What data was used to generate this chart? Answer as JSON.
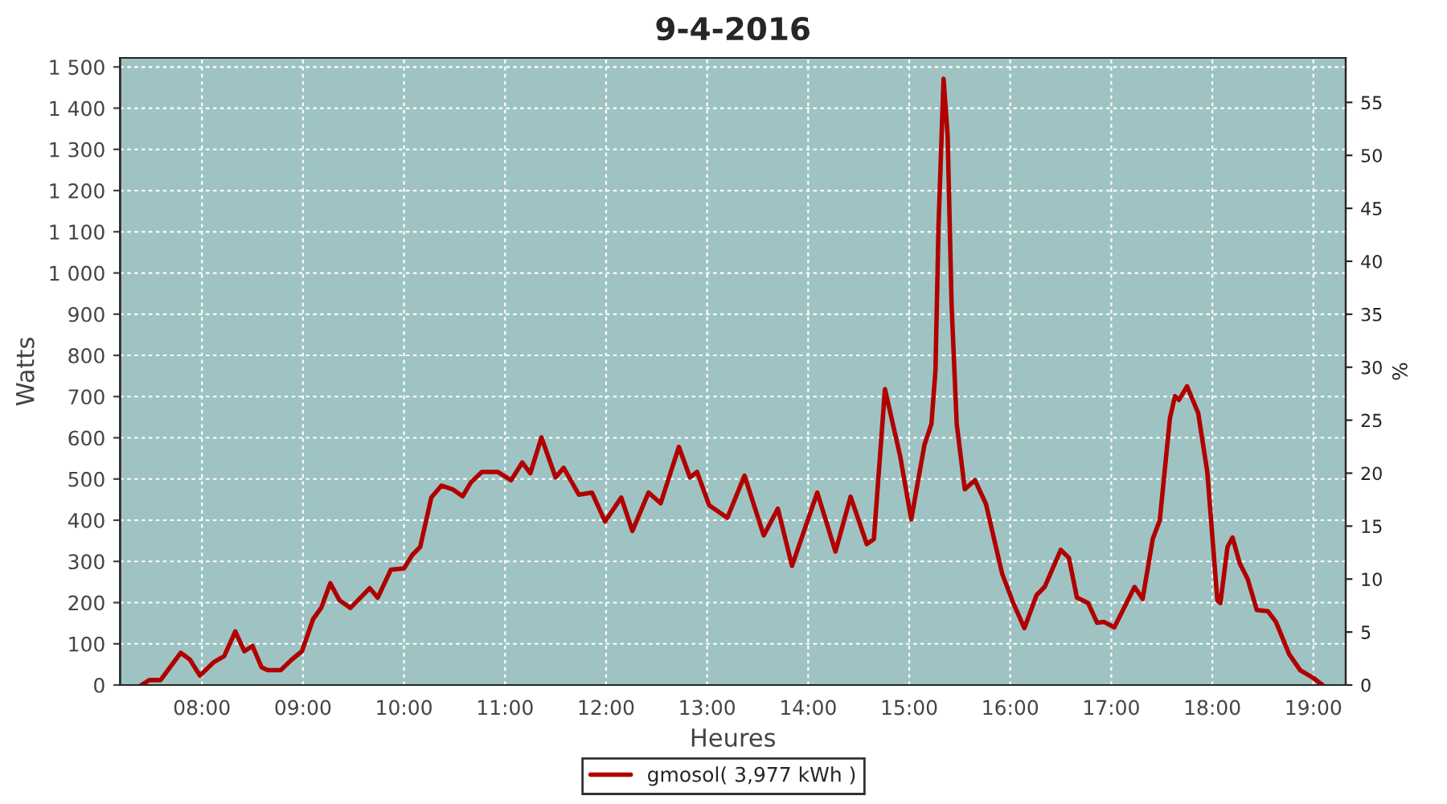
{
  "chart_data": {
    "type": "line",
    "title": "9-4-2016",
    "xlabel": "Heures",
    "ylabel": "Watts",
    "y2label": "%",
    "x": [
      7.4,
      7.48,
      7.59,
      7.79,
      7.88,
      7.98,
      8.12,
      8.22,
      8.33,
      8.42,
      8.5,
      8.59,
      8.65,
      8.78,
      8.89,
      8.99,
      9.1,
      9.18,
      9.27,
      9.36,
      9.47,
      9.66,
      9.74,
      9.87,
      10.0,
      10.08,
      10.16,
      10.27,
      10.37,
      10.48,
      10.58,
      10.66,
      10.77,
      10.93,
      11.06,
      11.17,
      11.25,
      11.36,
      11.5,
      11.58,
      11.73,
      11.86,
      11.99,
      12.15,
      12.26,
      12.42,
      12.54,
      12.72,
      12.83,
      12.9,
      13.02,
      13.2,
      13.37,
      13.56,
      13.7,
      13.84,
      14.09,
      14.27,
      14.42,
      14.58,
      14.65,
      14.76,
      14.91,
      15.02,
      15.15,
      15.22,
      15.26,
      15.29,
      15.34,
      15.38,
      15.42,
      15.47,
      15.55,
      15.65,
      15.76,
      15.92,
      16.03,
      16.14,
      16.26,
      16.34,
      16.5,
      16.58,
      16.66,
      16.77,
      16.86,
      16.93,
      17.03,
      17.23,
      17.31,
      17.41,
      17.48,
      17.58,
      17.63,
      17.67,
      17.75,
      17.86,
      17.95,
      18.05,
      18.08,
      18.15,
      18.2,
      18.27,
      18.35,
      18.44,
      18.55,
      18.63,
      18.76,
      18.87,
      19.0,
      19.09
    ],
    "series": [
      {
        "name": "gmosol( 3,977 kWh )",
        "color": "#b00000",
        "values": [
          0,
          12,
          12,
          78,
          62,
          23,
          56,
          70,
          130,
          82,
          95,
          43,
          36,
          36,
          62,
          82,
          160,
          187,
          247,
          206,
          187,
          235,
          212,
          280,
          283,
          315,
          335,
          455,
          484,
          475,
          458,
          491,
          517,
          517,
          497,
          540,
          514,
          601,
          504,
          527,
          462,
          467,
          397,
          455,
          374,
          467,
          441,
          578,
          504,
          517,
          436,
          406,
          508,
          363,
          428,
          289,
          467,
          324,
          457,
          342,
          354,
          718,
          556,
          402,
          582,
          634,
          764,
          1114,
          1471,
          1335,
          919,
          634,
          475,
          497,
          439,
          270,
          199,
          138,
          218,
          238,
          328,
          309,
          212,
          199,
          151,
          153,
          140,
          238,
          209,
          354,
          400,
          647,
          701,
          692,
          725,
          660,
          517,
          205,
          199,
          335,
          358,
          296,
          257,
          182,
          179,
          153,
          75,
          36,
          17,
          0
        ]
      }
    ],
    "xlim": [
      7.19,
      19.32
    ],
    "xticks": [
      {
        "value": 8,
        "label": "08:00"
      },
      {
        "value": 9,
        "label": "09:00"
      },
      {
        "value": 10,
        "label": "10:00"
      },
      {
        "value": 11,
        "label": "11:00"
      },
      {
        "value": 12,
        "label": "12:00"
      },
      {
        "value": 13,
        "label": "13:00"
      },
      {
        "value": 14,
        "label": "14:00"
      },
      {
        "value": 15,
        "label": "15:00"
      },
      {
        "value": 16,
        "label": "16:00"
      },
      {
        "value": 17,
        "label": "17:00"
      },
      {
        "value": 18,
        "label": "18:00"
      },
      {
        "value": 19,
        "label": "19:00"
      }
    ],
    "ylim": [
      0,
      1522
    ],
    "yticks": [
      0,
      100,
      200,
      300,
      400,
      500,
      600,
      700,
      800,
      900,
      {
        "value": 1000,
        "label": "1 000"
      },
      {
        "value": 1100,
        "label": "1 100"
      },
      {
        "value": 1200,
        "label": "1 200"
      },
      {
        "value": 1300,
        "label": "1 300"
      },
      {
        "value": 1400,
        "label": "1 400"
      },
      {
        "value": 1500,
        "label": "1 500"
      }
    ],
    "y2lim": [
      0,
      59.2
    ],
    "y2ticks": [
      0,
      5,
      10,
      15,
      20,
      25,
      30,
      35,
      40,
      45,
      50,
      55
    ],
    "grid": true,
    "legend": "bottom",
    "line_style": "solid",
    "marker": "none"
  }
}
